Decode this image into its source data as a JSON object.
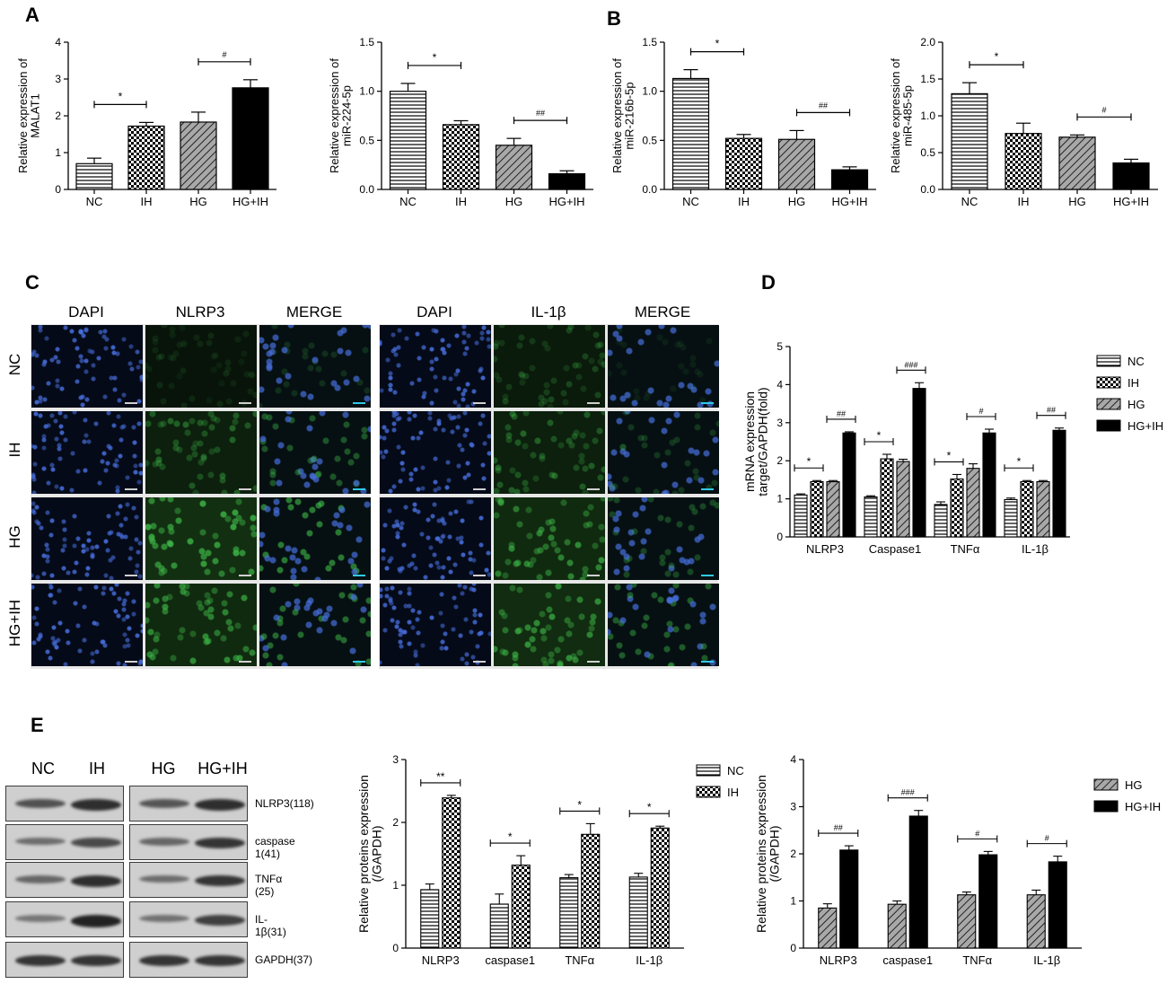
{
  "panel_letters": {
    "a": "A",
    "b": "B",
    "c": "C",
    "d": "D",
    "e": "E"
  },
  "colors": {
    "bar_fill_black": "#000000",
    "bar_stroke": "#000000",
    "dapi_dot": "#3a64c8",
    "green_dot": "#2a9a3a",
    "scalebar_cyan": "#30c8e8"
  },
  "chart_data": [
    {
      "id": "A1",
      "type": "bar",
      "title": "",
      "ylabel": "Relative expression of MALAT1",
      "ylabel_lines": [
        "Relative expression of",
        "MALAT1"
      ],
      "categories": [
        "NC",
        "IH",
        "HG",
        "HG+IH"
      ],
      "values": [
        0.7,
        1.72,
        1.83,
        2.76
      ],
      "errors": [
        0.15,
        0.1,
        0.27,
        0.22
      ],
      "patterns": [
        "hlines",
        "checker",
        "diag",
        "solid"
      ],
      "ylim": [
        0,
        4
      ],
      "yticks": [
        "0",
        "1",
        "2",
        "3",
        "4"
      ],
      "annotations": [
        {
          "between": [
            0,
            1
          ],
          "label": "*"
        },
        {
          "between": [
            2,
            3
          ],
          "label": "#"
        }
      ]
    },
    {
      "id": "A2",
      "type": "bar",
      "title": "",
      "ylabel": "Relative expression of miR-224-5p",
      "ylabel_lines": [
        "Relative expression of",
        "miR-224-5p"
      ],
      "categories": [
        "NC",
        "IH",
        "HG",
        "HG+IH"
      ],
      "values": [
        1.0,
        0.66,
        0.45,
        0.16
      ],
      "errors": [
        0.08,
        0.04,
        0.07,
        0.03
      ],
      "patterns": [
        "hlines",
        "checker",
        "diag",
        "solid"
      ],
      "ylim": [
        0,
        1.5
      ],
      "yticks": [
        "0.0",
        "0.5",
        "1.0",
        "1.5"
      ],
      "annotations": [
        {
          "between": [
            0,
            1
          ],
          "label": "*"
        },
        {
          "between": [
            2,
            3
          ],
          "label": "##"
        }
      ]
    },
    {
      "id": "B1",
      "type": "bar",
      "title": "",
      "ylabel": "Relative expression of miR-216b-5p",
      "ylabel_lines": [
        "Relative expression of",
        "miR-216b-5p"
      ],
      "categories": [
        "NC",
        "IH",
        "HG",
        "HG+IH"
      ],
      "values": [
        1.13,
        0.52,
        0.51,
        0.2
      ],
      "errors": [
        0.09,
        0.04,
        0.09,
        0.03
      ],
      "patterns": [
        "hlines",
        "checker",
        "diag",
        "solid"
      ],
      "ylim": [
        0,
        1.5
      ],
      "yticks": [
        "0.0",
        "0.5",
        "1.0",
        "1.5"
      ],
      "annotations": [
        {
          "between": [
            0,
            1
          ],
          "label": "*"
        },
        {
          "between": [
            2,
            3
          ],
          "label": "##"
        }
      ]
    },
    {
      "id": "B2",
      "type": "bar",
      "title": "",
      "ylabel": "Relative expression of miR-485-5p",
      "ylabel_lines": [
        "Relative expression of",
        "miR-485-5p"
      ],
      "categories": [
        "NC",
        "IH",
        "HG",
        "HG+IH"
      ],
      "values": [
        1.3,
        0.76,
        0.71,
        0.36
      ],
      "errors": [
        0.15,
        0.14,
        0.03,
        0.05
      ],
      "patterns": [
        "hlines",
        "checker",
        "diag",
        "solid"
      ],
      "ylim": [
        0,
        2.0
      ],
      "yticks": [
        "0.0",
        "0.5",
        "1.0",
        "1.5",
        "2.0"
      ],
      "annotations": [
        {
          "between": [
            0,
            1
          ],
          "label": "*"
        },
        {
          "between": [
            2,
            3
          ],
          "label": "#"
        }
      ]
    },
    {
      "id": "D",
      "type": "bar",
      "title": "",
      "ylabel": "mRNA expression target/GAPDH(fold)",
      "ylabel_lines": [
        "mRNA expression",
        "target/GAPDH(fold)"
      ],
      "categories": [
        "NLRP3",
        "Caspase1",
        "TNFα",
        "IL-1β"
      ],
      "series": [
        {
          "name": "NC",
          "pattern": "hlines",
          "values": [
            1.1,
            1.05,
            0.85,
            0.98
          ],
          "errors": [
            0.03,
            0.03,
            0.07,
            0.04
          ]
        },
        {
          "name": "IH",
          "pattern": "checker",
          "values": [
            1.45,
            2.05,
            1.52,
            1.45
          ],
          "errors": [
            0.03,
            0.12,
            0.12,
            0.03
          ]
        },
        {
          "name": "HG",
          "pattern": "diag",
          "values": [
            1.45,
            1.98,
            1.8,
            1.45
          ],
          "errors": [
            0.03,
            0.06,
            0.12,
            0.03
          ]
        },
        {
          "name": "HG+IH",
          "pattern": "solid",
          "values": [
            2.73,
            3.9,
            2.73,
            2.8
          ],
          "errors": [
            0.03,
            0.15,
            0.1,
            0.06
          ]
        }
      ],
      "ylim": [
        0,
        5
      ],
      "yticks": [
        "0",
        "1",
        "2",
        "3",
        "4",
        "5"
      ],
      "annotations": [
        {
          "cat": 0,
          "between": [
            0,
            1
          ],
          "label": "*"
        },
        {
          "cat": 0,
          "between": [
            2,
            3
          ],
          "label": "##"
        },
        {
          "cat": 1,
          "between": [
            0,
            1
          ],
          "label": "*"
        },
        {
          "cat": 1,
          "between": [
            2,
            3
          ],
          "label": "###"
        },
        {
          "cat": 2,
          "between": [
            0,
            1
          ],
          "label": "*"
        },
        {
          "cat": 2,
          "between": [
            2,
            3
          ],
          "label": "#"
        },
        {
          "cat": 3,
          "between": [
            0,
            1
          ],
          "label": "*"
        },
        {
          "cat": 3,
          "between": [
            2,
            3
          ],
          "label": "##"
        }
      ],
      "legend": "right"
    },
    {
      "id": "E1",
      "type": "bar",
      "title": "",
      "ylabel": "Relative proteins expression (/GAPDH)",
      "ylabel_lines": [
        "Relative proteins expression",
        "(/GAPDH)"
      ],
      "categories": [
        "NLRP3",
        "caspase1",
        "TNFα",
        "IL-1β"
      ],
      "series": [
        {
          "name": "NC",
          "pattern": "hlines",
          "values": [
            0.93,
            0.7,
            1.12,
            1.13
          ],
          "errors": [
            0.09,
            0.16,
            0.05,
            0.06
          ]
        },
        {
          "name": "IH",
          "pattern": "checker",
          "values": [
            2.39,
            1.32,
            1.81,
            1.91
          ],
          "errors": [
            0.04,
            0.15,
            0.17,
            0.03
          ]
        }
      ],
      "ylim": [
        0,
        3
      ],
      "yticks": [
        "0",
        "1",
        "2",
        "3"
      ],
      "annotations": [
        {
          "cat": 0,
          "between": [
            0,
            1
          ],
          "label": "**"
        },
        {
          "cat": 1,
          "between": [
            0,
            1
          ],
          "label": "*"
        },
        {
          "cat": 2,
          "between": [
            0,
            1
          ],
          "label": "*"
        },
        {
          "cat": 3,
          "between": [
            0,
            1
          ],
          "label": "*"
        }
      ],
      "legend": "top-right"
    },
    {
      "id": "E2",
      "type": "bar",
      "title": "",
      "ylabel": "Relative proteins expression (/GAPDH)",
      "ylabel_lines": [
        "Relative proteins expression",
        "(/GAPDH)"
      ],
      "categories": [
        "NLRP3",
        "caspase1",
        "TNFα",
        "IL-1β"
      ],
      "series": [
        {
          "name": "HG",
          "pattern": "diag",
          "values": [
            0.85,
            0.93,
            1.13,
            1.13
          ],
          "errors": [
            0.09,
            0.07,
            0.06,
            0.1
          ]
        },
        {
          "name": "HG+IH",
          "pattern": "solid",
          "values": [
            2.08,
            2.8,
            1.98,
            1.83
          ],
          "errors": [
            0.09,
            0.12,
            0.07,
            0.12
          ]
        }
      ],
      "ylim": [
        0,
        4
      ],
      "yticks": [
        "0",
        "1",
        "2",
        "3",
        "4"
      ],
      "annotations": [
        {
          "cat": 0,
          "between": [
            0,
            1
          ],
          "label": "##"
        },
        {
          "cat": 1,
          "between": [
            0,
            1
          ],
          "label": "###"
        },
        {
          "cat": 2,
          "between": [
            0,
            1
          ],
          "label": "#"
        },
        {
          "cat": 3,
          "between": [
            0,
            1
          ],
          "label": "#"
        }
      ],
      "legend": "top-right"
    }
  ],
  "microscopy": {
    "col_labels": [
      "DAPI",
      "NLRP3",
      "MERGE",
      "DAPI",
      "IL-1β",
      "MERGE"
    ],
    "row_labels": [
      "NC",
      "IH",
      "HG",
      "HG+IH"
    ]
  },
  "western_blot": {
    "col_labels": [
      "NC",
      "IH",
      "HG",
      "HG+IH"
    ],
    "row_labels": [
      "NLRP3(118)",
      "caspase 1(41)",
      "TNFα  (25)",
      "IL-1β(31)",
      "GAPDH(37)"
    ]
  }
}
